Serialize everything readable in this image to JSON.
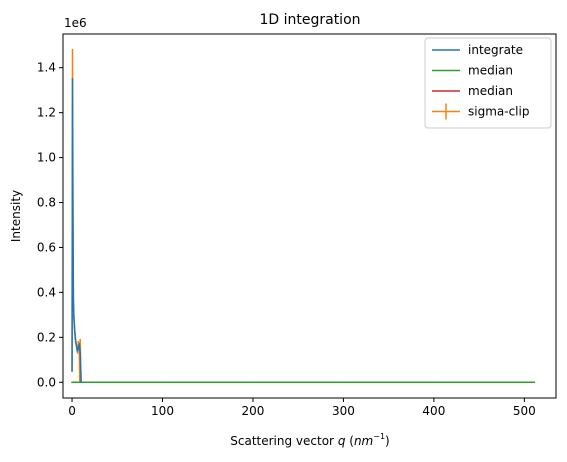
{
  "chart_data": {
    "type": "line",
    "title": "1D integration",
    "xlabel_prefix": "Scattering vector ",
    "xlabel_var": "q",
    "xlabel_unit_open": " (",
    "xlabel_unit_base": "nm",
    "xlabel_unit_exp": "−1",
    "xlabel_unit_close": ")",
    "ylabel": "Intensity",
    "y_offset_label": "1e6",
    "xlim": [
      -10,
      535
    ],
    "ylim": [
      -0.07,
      1.55
    ],
    "xticks": [
      {
        "value": 0,
        "label": "0"
      },
      {
        "value": 100,
        "label": "100"
      },
      {
        "value": 200,
        "label": "200"
      },
      {
        "value": 300,
        "label": "300"
      },
      {
        "value": 400,
        "label": "400"
      },
      {
        "value": 500,
        "label": "500"
      }
    ],
    "yticks": [
      {
        "value": 0.0,
        "label": "0.0"
      },
      {
        "value": 0.2,
        "label": "0.2"
      },
      {
        "value": 0.4,
        "label": "0.4"
      },
      {
        "value": 0.6,
        "label": "0.6"
      },
      {
        "value": 0.8,
        "label": "0.8"
      },
      {
        "value": 1.0,
        "label": "1.0"
      },
      {
        "value": 1.2,
        "label": "1.2"
      },
      {
        "value": 1.4,
        "label": "1.4"
      }
    ],
    "legend_position": "top-right",
    "series": [
      {
        "name": "integrate",
        "color": "#1f77b4",
        "x": [
          0,
          0.5,
          1,
          1.5,
          2,
          3,
          4,
          5,
          6,
          7,
          8,
          9,
          10
        ],
        "y": [
          0.05,
          1.35,
          0.74,
          0.36,
          0.29,
          0.22,
          0.18,
          0.16,
          0.14,
          0.15,
          0.17,
          0.13,
          0.0
        ]
      },
      {
        "name": "median",
        "color": "#2ca02c",
        "x": [
          0,
          1,
          5,
          10,
          511
        ],
        "y": [
          0.0,
          0.0,
          0.0,
          0.0,
          0.0
        ]
      },
      {
        "name": "median",
        "color": "#d62728",
        "x": [
          0,
          100,
          200,
          300,
          400,
          511
        ],
        "y": [
          0.0,
          0.0,
          0.0,
          0.0,
          0.0,
          0.0
        ]
      },
      {
        "name": "sigma-clip",
        "color": "#ff7f0e",
        "errorbar": true,
        "x": [
          0,
          0.5,
          1,
          1.5,
          2,
          3,
          4,
          5,
          6,
          7,
          8,
          8.5,
          9,
          10
        ],
        "y": [
          0.05,
          1.48,
          0.76,
          0.37,
          0.3,
          0.23,
          0.19,
          0.16,
          0.13,
          0.18,
          0.17,
          0.0,
          0.19,
          0.0
        ]
      }
    ]
  }
}
